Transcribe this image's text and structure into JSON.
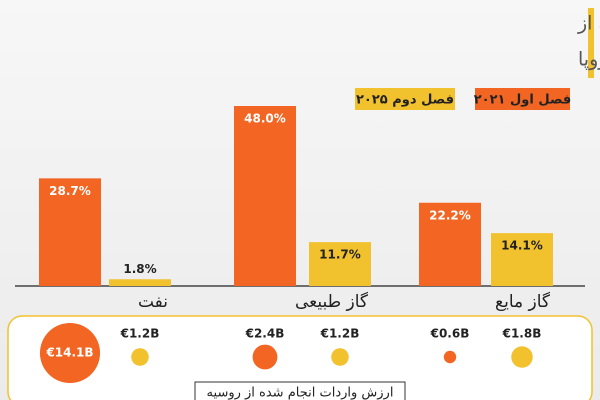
{
  "chart_data": [
    {
      "type": "bar",
      "title": "سهم نفت و گاز وارداتی اتحادیه اروپا از روسیه از",
      "subtitle": "کل واردات نفت و گاز اتحادیه اروپا",
      "categories": [
        "نفت",
        "گاز طبیعی",
        "گاز مایع"
      ],
      "series": [
        {
          "name": "فصل اول ۲۰۲۱",
          "color": "#f26522",
          "values": [
            28.7,
            48.0,
            22.2
          ],
          "value_labels": [
            "28.7%",
            "48.0%",
            "22.2%"
          ]
        },
        {
          "name": "فصل دوم ۲۰۲۵",
          "color": "#f2c12e",
          "values": [
            1.8,
            11.7,
            14.1
          ],
          "value_labels": [
            "1.8%",
            "11.7%",
            "14.1%"
          ]
        }
      ]
    },
    {
      "type": "bubble",
      "title": "ارزش واردات انجام شده از روسیه",
      "series": [
        {
          "color": "#f26522",
          "values": [
            14.1,
            2.4,
            0.6
          ],
          "value_labels": [
            "€14.1B",
            "€2.4B",
            "€0.6B"
          ]
        },
        {
          "color": "#f2c12e",
          "values": [
            1.2,
            1.2,
            1.8
          ],
          "value_labels": [
            "€1.2B",
            "€1.2B",
            "€1.8B"
          ]
        }
      ]
    }
  ]
}
